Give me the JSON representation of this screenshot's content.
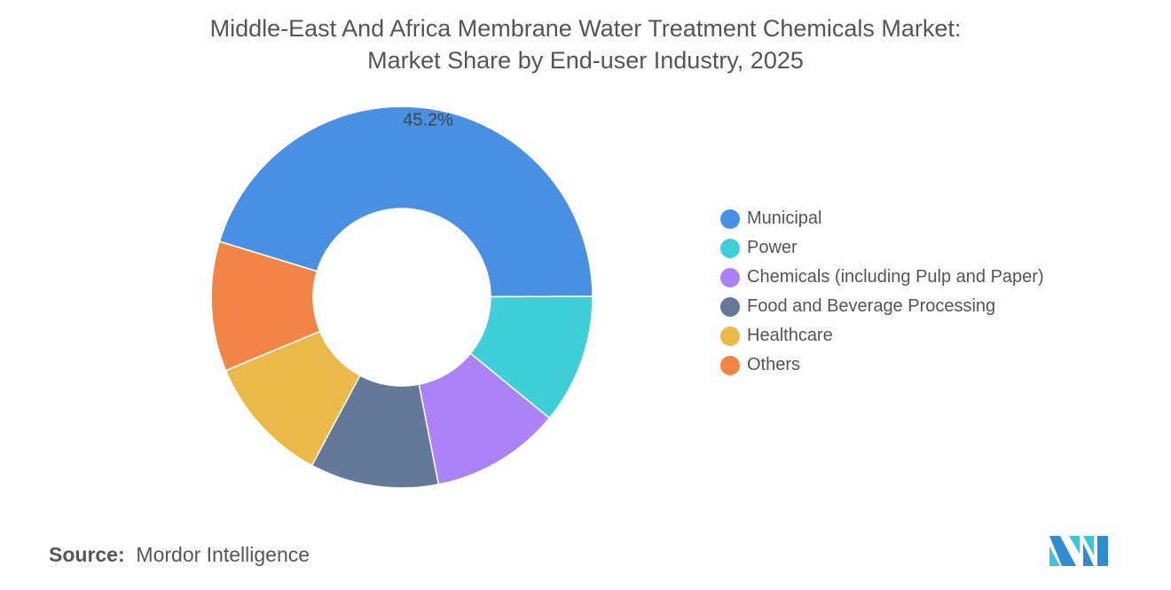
{
  "title_line1": "Middle-East And Africa Membrane Water Treatment Chemicals Market:",
  "title_line2": "Market Share by End-user Industry, 2025",
  "source_label": "Source:",
  "source_value": "Mordor Intelligence",
  "logo_text": "Mordor Intelligence",
  "chart_data": {
    "type": "pie",
    "donut": true,
    "categories": [
      "Municipal",
      "Power",
      "Chemicals (including Pulp and Paper)",
      "Food and Beverage Processing",
      "Healthcare",
      "Others"
    ],
    "values": [
      45.2,
      11.0,
      11.0,
      10.9,
      10.9,
      11.0
    ],
    "data_labels": [
      "45.2%",
      "",
      "",
      "",
      "",
      ""
    ],
    "colors": [
      "#4a90e2",
      "#3ecfdb",
      "#ae82f7",
      "#64789a",
      "#ebb84a",
      "#f28446"
    ],
    "legend_position": "right"
  }
}
